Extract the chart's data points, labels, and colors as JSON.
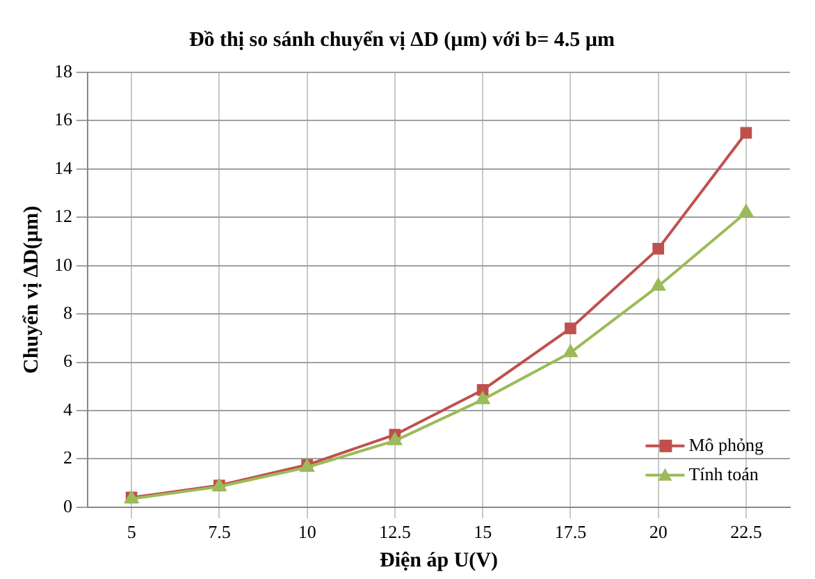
{
  "chart_data": {
    "type": "line",
    "title": "Đồ thị so sánh chuyển vị ΔD (µm) với b= 4.5 µm",
    "xlabel": "Điện áp U(V)",
    "ylabel": "Chuyển vị ΔD(µm)",
    "categories": [
      "5",
      "7.5",
      "10",
      "12.5",
      "15",
      "17.5",
      "20",
      "22.5"
    ],
    "series": [
      {
        "name": "Mô phỏng",
        "color": "#c0504d",
        "marker": "square",
        "values": [
          0.4,
          0.9,
          1.75,
          3.0,
          4.85,
          7.4,
          10.7,
          15.5
        ]
      },
      {
        "name": "Tính toán",
        "color": "#9bbb59",
        "marker": "triangle",
        "values": [
          0.35,
          0.85,
          1.65,
          2.75,
          4.45,
          6.4,
          9.15,
          12.2
        ]
      }
    ],
    "ylim": [
      0,
      18
    ],
    "yticks": [
      0,
      2,
      4,
      6,
      8,
      10,
      12,
      14,
      16,
      18
    ],
    "grid": true,
    "legend": "bottom right"
  }
}
